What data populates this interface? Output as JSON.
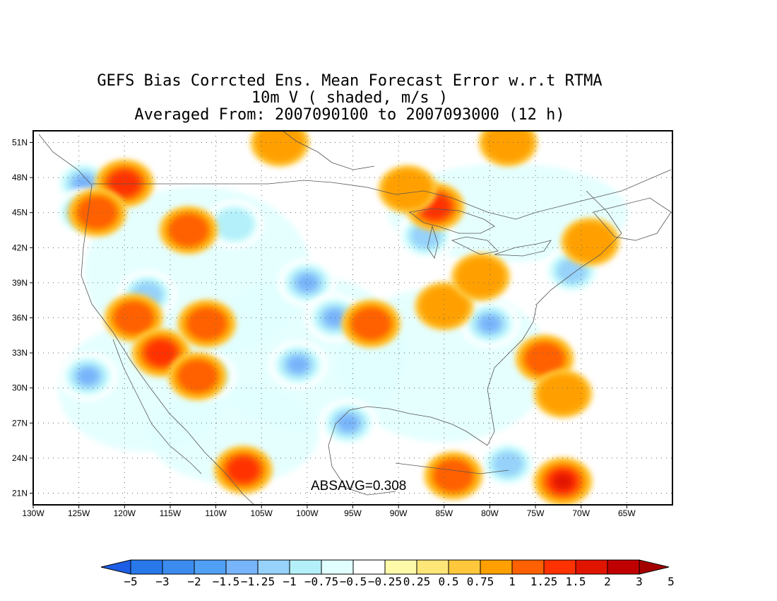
{
  "title": {
    "line1": "GEFS Bias Corrcted Ens. Mean Forecast Error w.r.t RTMA",
    "line2": "10m V ( shaded, m/s )",
    "line3": "Averaged From: 2007090100 to 2007093000 (12 h)"
  },
  "map": {
    "projection": "lat-lon",
    "lon_range": [
      -130,
      -60
    ],
    "lat_range": [
      20,
      52
    ],
    "lon_ticks": [
      "130W",
      "125W",
      "120W",
      "115W",
      "110W",
      "105W",
      "100W",
      "95W",
      "90W",
      "85W",
      "80W",
      "75W",
      "70W",
      "65W"
    ],
    "lat_ticks": [
      "51N",
      "48N",
      "45N",
      "42N",
      "39N",
      "36N",
      "33N",
      "30N",
      "27N",
      "24N",
      "21N"
    ],
    "grid": "dotted",
    "annotation": "ABSAVG=0.308"
  },
  "colorbar": {
    "labels": [
      "-5",
      "-3",
      "-2",
      "-1.5",
      "-1.25",
      "-1",
      "-0.75",
      "-0.5",
      "-0.25",
      "0.25",
      "0.5",
      "0.75",
      "1",
      "1.25",
      "1.5",
      "2",
      "3",
      "5"
    ],
    "colors": [
      "#1e5ee6",
      "#2878ea",
      "#3c8cf0",
      "#50a0f5",
      "#78b4fa",
      "#96d2fa",
      "#b4f0fa",
      "#e1ffff",
      "#ffffff",
      "#fffaaa",
      "#ffe678",
      "#ffc83c",
      "#ffa000",
      "#ff6000",
      "#ff3200",
      "#e11400",
      "#c00000",
      "#a50000"
    ]
  },
  "fields": {
    "negative": [
      {
        "lon": -124.5,
        "lat": 47.5,
        "v": -2
      },
      {
        "lon": -124.5,
        "lat": 45,
        "v": -1
      },
      {
        "lon": -117.5,
        "lat": 38,
        "v": -1
      },
      {
        "lon": -100,
        "lat": 39,
        "v": -1.5
      },
      {
        "lon": -97,
        "lat": 36,
        "v": -1.5
      },
      {
        "lon": -101,
        "lat": 32,
        "v": -1.5
      },
      {
        "lon": -95.5,
        "lat": 27,
        "v": -2
      },
      {
        "lon": -80,
        "lat": 35.5,
        "v": -1.5
      },
      {
        "lon": -124,
        "lat": 31,
        "v": -1.5
      },
      {
        "lon": -87,
        "lat": 43,
        "v": -1
      },
      {
        "lon": -71,
        "lat": 40,
        "v": -1
      },
      {
        "lon": -78,
        "lat": 23.5,
        "v": -1
      },
      {
        "lon": -111,
        "lat": 31,
        "v": -0.75
      },
      {
        "lon": -108,
        "lat": 44,
        "v": -0.75
      }
    ],
    "positive": [
      {
        "lon": -120,
        "lat": 47.5,
        "v": 1.25
      },
      {
        "lon": -123,
        "lat": 45,
        "v": 1
      },
      {
        "lon": -113,
        "lat": 43.5,
        "v": 1
      },
      {
        "lon": -119,
        "lat": 36,
        "v": 1
      },
      {
        "lon": -116,
        "lat": 33,
        "v": 1.25
      },
      {
        "lon": -112,
        "lat": 31,
        "v": 1
      },
      {
        "lon": -111,
        "lat": 35.5,
        "v": 1
      },
      {
        "lon": -107,
        "lat": 23,
        "v": 1.25
      },
      {
        "lon": -93,
        "lat": 35.5,
        "v": 1
      },
      {
        "lon": -86,
        "lat": 45.5,
        "v": 1.25
      },
      {
        "lon": -89,
        "lat": 47,
        "v": 0.75
      },
      {
        "lon": -85,
        "lat": 37,
        "v": 0.75
      },
      {
        "lon": -74,
        "lat": 32.5,
        "v": 1
      },
      {
        "lon": -72,
        "lat": 22,
        "v": 1.5
      },
      {
        "lon": -72,
        "lat": 29.5,
        "v": 0.75
      },
      {
        "lon": -84,
        "lat": 22.5,
        "v": 1
      },
      {
        "lon": -103,
        "lat": 51,
        "v": 0.75
      },
      {
        "lon": -78,
        "lat": 51,
        "v": 0.75
      },
      {
        "lon": -69,
        "lat": 42.5,
        "v": 0.75
      },
      {
        "lon": -81,
        "lat": 39.5,
        "v": 0.75
      }
    ]
  }
}
